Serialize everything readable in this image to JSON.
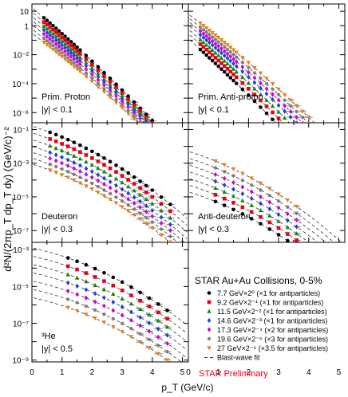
{
  "chart_data": {
    "type": "scatter",
    "title": "",
    "xlabel": "p_T (GeV/c)",
    "ylabel": "d²N/(2πp_T dp_T dy) (GeV/c)⁻²",
    "log_y": true,
    "xlim": [
      0,
      5.2
    ],
    "x_ticks": [
      "0",
      "1",
      "2",
      "3",
      "4",
      "5"
    ],
    "collision_label": "STAR Au+Au Collisions, 0-5%",
    "preliminary_label": "STAR Preliminary",
    "fit_label": "Blast-wave fit",
    "legend_placement": "bottom-right panel",
    "energies": [
      {
        "label": "7.7 GeV×2⁰ (×1 for antiparticles)",
        "color": "#000000",
        "marker": "circle"
      },
      {
        "label": "9.2 GeV×2⁻¹ (×1 for antiparticles)",
        "color": "#e8001a",
        "marker": "square"
      },
      {
        "label": "11.5 GeV×2⁻² (×1 for antiparticles)",
        "color": "#128a12",
        "marker": "triangle-up"
      },
      {
        "label": "14.6 GeV×2⁻³ (×1 for antiparticles)",
        "color": "#1f3fe0",
        "marker": "diamond"
      },
      {
        "label": "17.3 GeV×2⁻⁴ (×2 for antiparticles)",
        "color": "#d400d4",
        "marker": "diamond"
      },
      {
        "label": "19.6 GeV×2⁻⁵ (×3 for antiparticles)",
        "color": "#7a7a7a",
        "marker": "star"
      },
      {
        "label": "27 GeV×2⁻⁶ (×3.5 for antiparticles)",
        "color": "#e8801a",
        "marker": "triangle-down"
      }
    ],
    "panels": [
      {
        "id": "proton",
        "name": "Prim. Proton",
        "rapidity": "|y| < 0.1",
        "ylim": [
          -6.7,
          1.5
        ],
        "y_tick_exponents": [
          1,
          0,
          -2,
          -4,
          -6
        ],
        "y_tick_labels": [
          "10",
          "1",
          "10⁻²",
          "10⁻⁴",
          "10⁻⁶"
        ],
        "pt_points": [
          0.4,
          0.5,
          0.6,
          0.7,
          0.8,
          0.9,
          1.0,
          1.1,
          1.2,
          1.3,
          1.4,
          1.5,
          1.6,
          1.8,
          2.0,
          2.2,
          2.4,
          2.6,
          2.8,
          3.0,
          3.2,
          3.4,
          3.6,
          3.8,
          4.0,
          4.2,
          4.4
        ],
        "log10_yield_at_pt0": [
          1.25,
          0.95,
          0.65,
          0.36,
          0.07,
          -0.23,
          -0.52
        ],
        "log10_slope_per_gev": [
          -1.75,
          -1.72,
          -1.68,
          -1.65,
          -1.62,
          -1.6,
          -1.57
        ],
        "curvature": -0.05
      },
      {
        "id": "anti-proton",
        "name": "Prim. Anti-proton",
        "rapidity": "|y| < 0.1",
        "ylim": [
          -6.7,
          1.5
        ],
        "y_tick_exponents": [
          1,
          0,
          -2,
          -4,
          -6
        ],
        "y_tick_labels": [
          "10",
          "1",
          "10⁻²",
          "10⁻⁴",
          "10⁻⁶"
        ],
        "pt_points": [
          0.4,
          0.5,
          0.6,
          0.7,
          0.8,
          0.9,
          1.0,
          1.1,
          1.2,
          1.3,
          1.4,
          1.5,
          1.6,
          1.8,
          2.0,
          2.2,
          2.4,
          2.6,
          2.8,
          3.0,
          3.2,
          3.4,
          3.6,
          3.8,
          4.0
        ],
        "log10_yield_at_pt0": [
          -0.9,
          -0.55,
          -0.25,
          0.05,
          0.3,
          0.55,
          0.8
        ],
        "log10_slope_per_gev": [
          -1.85,
          -1.8,
          -1.75,
          -1.7,
          -1.66,
          -1.62,
          -1.58
        ],
        "curvature": -0.05
      },
      {
        "id": "deuteron",
        "name": "Deuteron",
        "rapidity": "|y| < 0.3",
        "ylim": [
          -7.7,
          -0.6
        ],
        "y_tick_exponents": [
          -1,
          -3,
          -5,
          -7
        ],
        "y_tick_labels": [
          "10⁻¹",
          "10⁻³",
          "10⁻⁵",
          "10⁻⁷"
        ],
        "pt_points": [
          0.6,
          0.8,
          1.0,
          1.2,
          1.4,
          1.6,
          1.8,
          2.0,
          2.2,
          2.4,
          2.6,
          2.8,
          3.0,
          3.2,
          3.4,
          3.6,
          3.8,
          4.0,
          4.3,
          4.6
        ],
        "log10_yield_at_pt0": [
          -0.8,
          -1.2,
          -1.6,
          -2.0,
          -2.35,
          -2.7,
          -3.05
        ],
        "log10_slope_per_gev": [
          -0.55,
          -0.55,
          -0.55,
          -0.55,
          -0.55,
          -0.55,
          -0.55
        ],
        "curvature": -0.1
      },
      {
        "id": "anti-deuteron",
        "name": "Anti-deuteron",
        "rapidity": "|y| < 0.3",
        "ylim": [
          -7.7,
          -0.6
        ],
        "y_tick_exponents": [
          -1,
          -3,
          -5,
          -7
        ],
        "y_tick_labels": [
          "10⁻¹",
          "10⁻³",
          "10⁻⁵",
          "10⁻⁷"
        ],
        "pt_points": [
          0.9,
          1.2,
          1.5,
          1.8,
          2.1,
          2.4,
          2.7,
          3.0,
          3.3,
          3.6
        ],
        "log10_yield_at_pt0": [
          -4.7,
          -4.3,
          -3.9,
          -3.5,
          -3.1,
          -2.7,
          -2.3
        ],
        "log10_slope_per_gev": [
          -0.55,
          -0.55,
          -0.55,
          -0.55,
          -0.55,
          -0.55,
          -0.55
        ],
        "curvature": -0.1
      },
      {
        "id": "helium3",
        "name": "³He",
        "rapidity": "|y| < 0.5",
        "ylim": [
          -9.1,
          -2.6
        ],
        "y_tick_exponents": [
          -3,
          -5,
          -7,
          -9
        ],
        "y_tick_labels": [
          "10⁻³",
          "10⁻⁵",
          "10⁻⁷",
          "10⁻⁹"
        ],
        "pt_points": [
          1.2,
          1.5,
          1.8,
          2.1,
          2.4,
          2.7,
          3.0,
          3.3,
          3.6,
          3.9,
          4.2,
          4.5
        ],
        "log10_yield_at_pt0": [
          -2.9,
          -3.35,
          -3.8,
          -4.25,
          -4.7,
          -5.15,
          -5.6
        ],
        "log10_slope_per_gev": [
          -0.35,
          -0.35,
          -0.35,
          -0.35,
          -0.35,
          -0.35,
          -0.35
        ],
        "curvature": -0.09
      }
    ]
  }
}
